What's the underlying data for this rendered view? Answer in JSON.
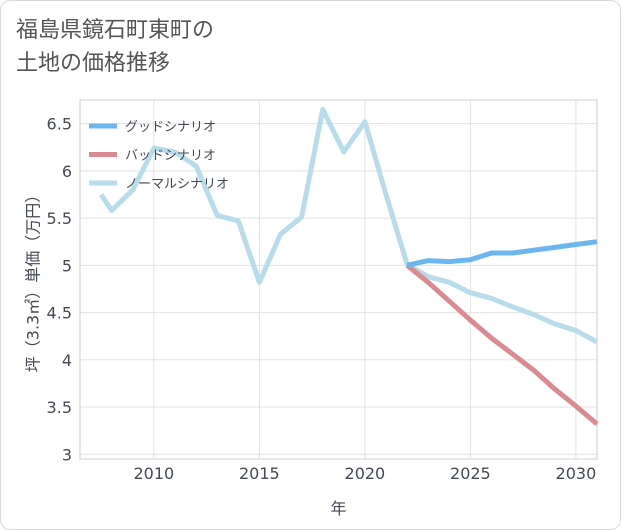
{
  "chart_data": {
    "type": "line",
    "title": "福島県鏡石町東町の\n土地の価格推移",
    "xlabel": "年",
    "ylabel": "坪（3.3㎡）単価（万円）",
    "xlim": [
      2006.5,
      2031
    ],
    "ylim": [
      2.95,
      6.75
    ],
    "x_ticks": [
      2010,
      2015,
      2020,
      2025,
      2030
    ],
    "y_ticks": [
      3,
      3.5,
      4,
      4.5,
      5,
      5.5,
      6,
      6.5
    ],
    "x_tick_labels": [
      "2010",
      "2015",
      "2020",
      "2025",
      "2030"
    ],
    "y_tick_labels": [
      "3",
      "3.5",
      "4",
      "4.5",
      "5",
      "5.5",
      "6",
      "6.5"
    ],
    "grid": true,
    "legend_position": "top-left",
    "series": [
      {
        "name": "グッドシナリオ",
        "color": "#6cb6f0",
        "x": [
          2022,
          2023,
          2024,
          2025,
          2026,
          2027,
          2028,
          2029,
          2030,
          2031
        ],
        "values": [
          5.0,
          5.05,
          5.04,
          5.06,
          5.13,
          5.13,
          5.16,
          5.19,
          5.22,
          5.25
        ]
      },
      {
        "name": "バッドシナリオ",
        "color": "#dc8a92",
        "x": [
          2022,
          2023,
          2024,
          2025,
          2026,
          2027,
          2028,
          2029,
          2030,
          2031
        ],
        "values": [
          5.0,
          4.82,
          4.62,
          4.42,
          4.23,
          4.06,
          3.89,
          3.69,
          3.51,
          3.32
        ]
      },
      {
        "name": "ノーマルシナリオ",
        "color": "#b9dcea",
        "x": [
          2007.5,
          2008,
          2009,
          2010,
          2011,
          2012,
          2013,
          2014,
          2015,
          2016,
          2017,
          2018,
          2019,
          2020,
          2021,
          2022,
          2023,
          2024,
          2025,
          2026,
          2027,
          2028,
          2029,
          2030,
          2031
        ],
        "values": [
          5.75,
          5.58,
          5.8,
          6.24,
          6.2,
          6.05,
          5.53,
          5.47,
          4.82,
          5.33,
          5.51,
          6.65,
          6.2,
          6.52,
          5.75,
          5.01,
          4.88,
          4.82,
          4.71,
          4.65,
          4.56,
          4.48,
          4.38,
          4.31,
          4.19
        ]
      }
    ]
  }
}
